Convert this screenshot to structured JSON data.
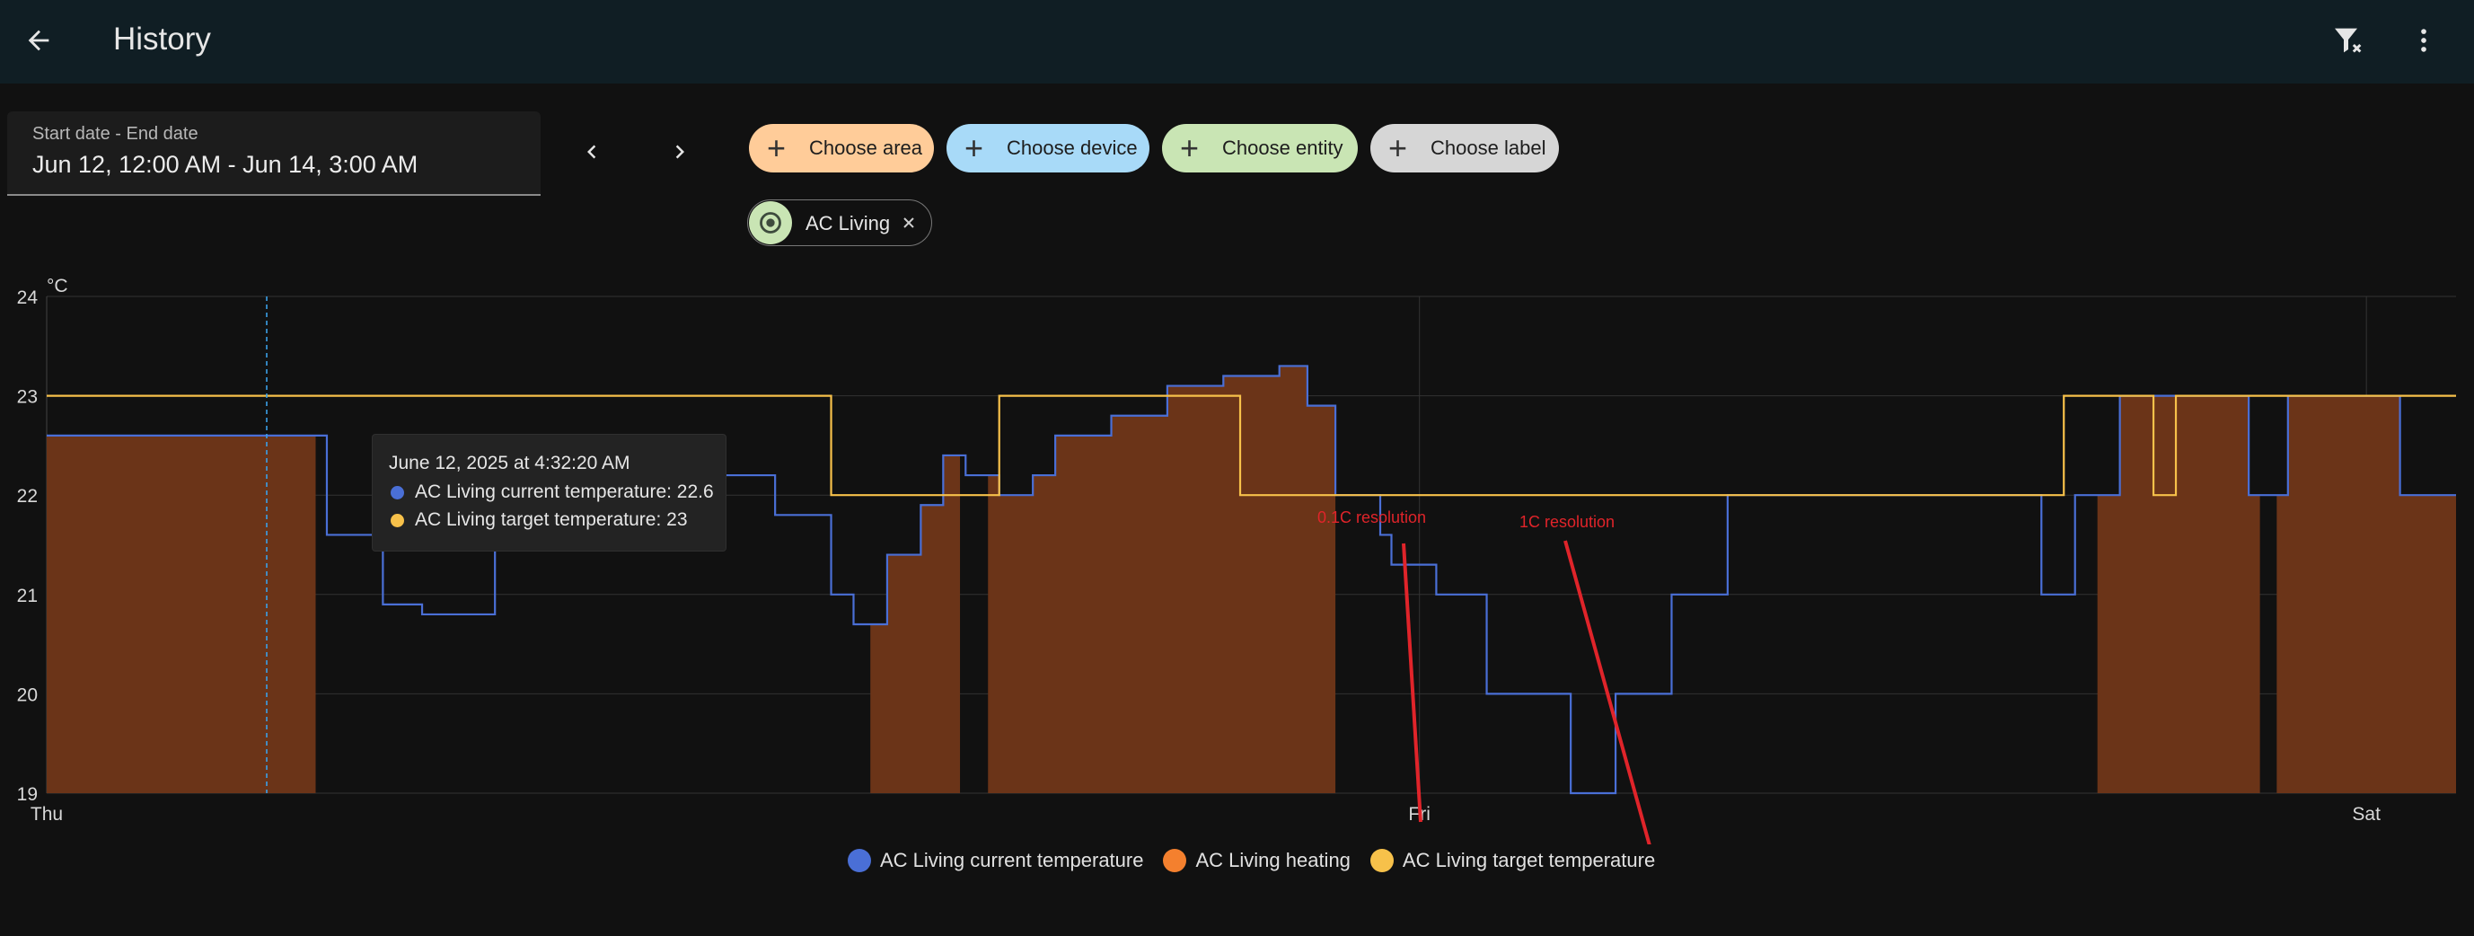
{
  "header": {
    "title": "History"
  },
  "date_picker": {
    "label": "Start date - End date",
    "value": "Jun 12, 12:00 AM - Jun 14, 3:00 AM"
  },
  "chips": [
    {
      "label": "Choose area",
      "color": "#ffcc99"
    },
    {
      "label": "Choose device",
      "color": "#a8daf8"
    },
    {
      "label": "Choose entity",
      "color": "#c9e5b4"
    },
    {
      "label": "Choose label",
      "color": "#d6d6d6"
    }
  ],
  "selected_entity": {
    "label": "AC Living"
  },
  "chart_data": {
    "type": "line",
    "y_unit": "°C",
    "ylim": [
      19,
      24
    ],
    "y_ticks": [
      "24",
      "23",
      "22",
      "21",
      "20",
      "19"
    ],
    "x_ticks": [
      "Thu",
      "Fri",
      "Sat"
    ],
    "grid": true,
    "series": [
      {
        "name": "AC Living current temperature",
        "color": "#4a6fd6",
        "points": [
          [
            0,
            22.6
          ],
          [
            2,
            22.6
          ],
          [
            3,
            22.6
          ],
          [
            4,
            22.6
          ],
          [
            5,
            21.6
          ],
          [
            6,
            20.9
          ],
          [
            6.7,
            20.8
          ],
          [
            8,
            21.6
          ],
          [
            9,
            22.6
          ],
          [
            10,
            22.4
          ],
          [
            11,
            22.2
          ],
          [
            12,
            22.2
          ],
          [
            13,
            21.8
          ],
          [
            14,
            21.0
          ],
          [
            14.4,
            20.7
          ],
          [
            15,
            21.4
          ],
          [
            15.6,
            21.9
          ],
          [
            16,
            22.4
          ],
          [
            16.4,
            22.2
          ],
          [
            17,
            22.0
          ],
          [
            17.6,
            22.2
          ],
          [
            18,
            22.6
          ],
          [
            19,
            22.8
          ],
          [
            20,
            23.1
          ],
          [
            21,
            23.2
          ],
          [
            22,
            23.3
          ],
          [
            22.5,
            22.9
          ],
          [
            23,
            22.0
          ],
          [
            23.8,
            21.6
          ],
          [
            24,
            21.3
          ],
          [
            24.8,
            21.0
          ],
          [
            25,
            21.0
          ],
          [
            25.7,
            20.0
          ],
          [
            26,
            20.0
          ],
          [
            27,
            20.0
          ],
          [
            27.2,
            19.0
          ],
          [
            27.9,
            19.0
          ],
          [
            28,
            20.0
          ],
          [
            28.9,
            20.0
          ],
          [
            29,
            21.0
          ],
          [
            29.9,
            21.0
          ],
          [
            30,
            22.0
          ],
          [
            35,
            22.0
          ],
          [
            35.6,
            21.0
          ],
          [
            36,
            21.0
          ],
          [
            36.2,
            22.0
          ],
          [
            37,
            23.0
          ],
          [
            38,
            23.0
          ],
          [
            39,
            23.0
          ],
          [
            39.3,
            22.0
          ],
          [
            39.6,
            22.0
          ],
          [
            40,
            23.0
          ],
          [
            41,
            23.0
          ],
          [
            42,
            22.0
          ],
          [
            43,
            22.0
          ]
        ]
      },
      {
        "name": "AC Living heating",
        "color": "#f4802e"
      },
      {
        "name": "AC Living target temperature",
        "color": "#f7c14a",
        "points": [
          [
            0,
            23
          ],
          [
            14,
            23
          ],
          [
            14,
            22
          ],
          [
            17,
            22
          ],
          [
            17,
            23
          ],
          [
            21.3,
            23
          ],
          [
            21.3,
            22
          ],
          [
            36,
            22
          ],
          [
            36,
            23
          ],
          [
            37.6,
            23
          ],
          [
            37.6,
            22
          ],
          [
            38,
            22
          ],
          [
            38,
            23
          ],
          [
            43,
            23
          ]
        ]
      }
    ],
    "heating_periods": [
      [
        0,
        4.8
      ],
      [
        14.7,
        16.3
      ],
      [
        16.8,
        23
      ],
      [
        36.6,
        39.5
      ],
      [
        39.8,
        43
      ]
    ],
    "tooltip": {
      "title": "June 12, 2025 at 4:32:20 AM",
      "rows": [
        {
          "label": "AC Living current temperature: 22.6",
          "color": "#4a6fd6"
        },
        {
          "label": "AC Living target temperature: 23",
          "color": "#f7c14a"
        }
      ]
    },
    "annotations": [
      "0.1C resolution",
      "1C resolution"
    ]
  }
}
